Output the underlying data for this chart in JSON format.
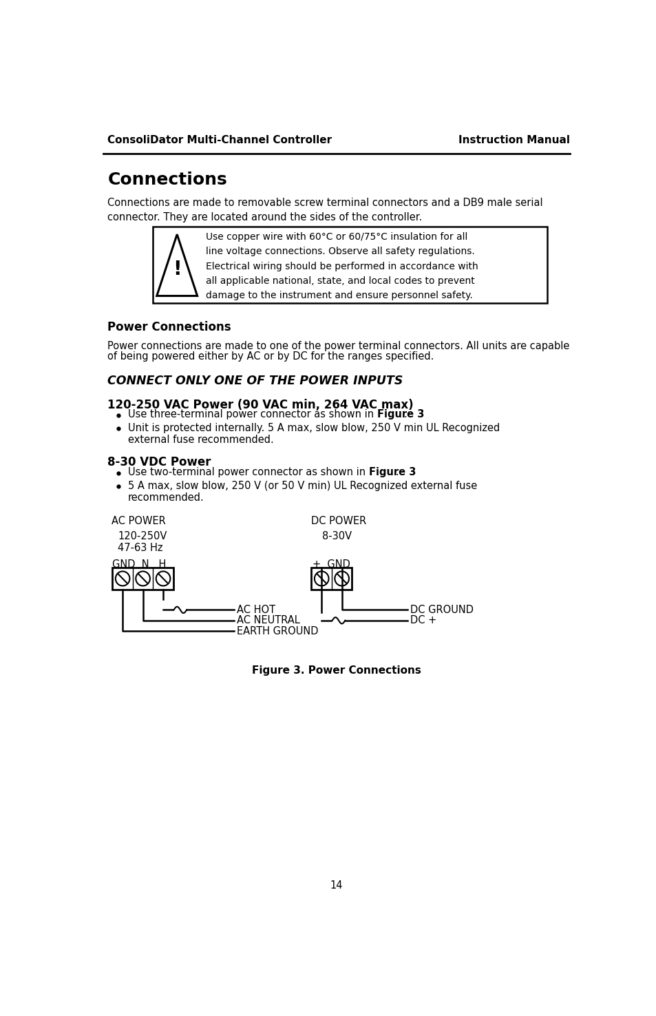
{
  "header_left": "ConsoliDator Multi-Channel Controller",
  "header_right": "Instruction Manual",
  "section_title": "Connections",
  "intro_text": "Connections are made to removable screw terminal connectors and a DB9 male serial\nconnector. They are located around the sides of the controller.",
  "warning_lines": [
    "Use copper wire with 60°C or 60/75°C insulation for all",
    "line voltage connections. Observe all safety regulations.",
    "Electrical wiring should be performed in accordance with",
    "all applicable national, state, and local codes to prevent",
    "damage to the instrument and ensure personnel safety."
  ],
  "power_connections_title": "Power Connections",
  "power_intro_line1": "Power connections are made to one of the power terminal connectors. All units are capable",
  "power_intro_line2": "of being powered either by AC or by DC for the ranges specified.",
  "connect_warning": "CONNECT ONLY ONE OF THE POWER INPUTS",
  "vac_title": "120-250 VAC Power (90 VAC min, 264 VAC max)",
  "vac_b1_pre": "Use three-terminal power connector as shown in ",
  "vac_b1_bold": "Figure 3",
  "vac_b1_post": ".",
  "vac_b2_line1": "Unit is protected internally. 5 A max, slow blow, 250 V min UL Recognized",
  "vac_b2_line2": "external fuse recommended.",
  "vdc_title": "8-30 VDC Power",
  "vdc_b1_pre": "Use two-terminal power connector as shown in ",
  "vdc_b1_bold": "Figure 3",
  "vdc_b1_post": ".",
  "vdc_b2_line1": "5 A max, slow blow, 250 V (or 50 V min) UL Recognized external fuse",
  "vdc_b2_line2": "recommended.",
  "ac_power_label": "AC POWER",
  "ac_voltage": "120-250V",
  "ac_freq": "47-63 Hz",
  "dc_power_label": "DC POWER",
  "dc_voltage": "8-30V",
  "gnd_n_h": "GND  N   H",
  "plus_gnd": "+  GND",
  "ac_hot": "AC HOT",
  "ac_neutral": "AC NEUTRAL",
  "earth_ground": "EARTH GROUND",
  "dc_ground": "DC GROUND",
  "dc_plus": "DC +",
  "figure_caption": "Figure 3. Power Connections",
  "page_number": "14"
}
